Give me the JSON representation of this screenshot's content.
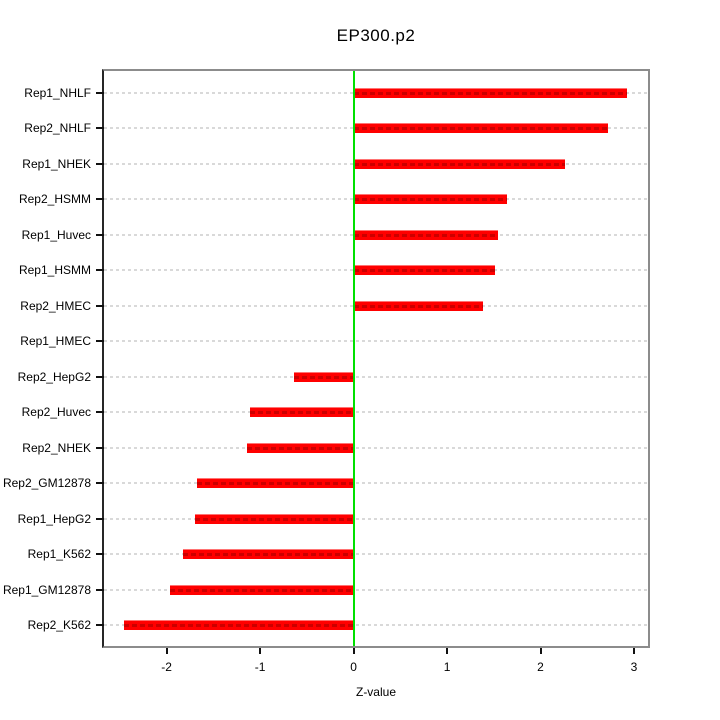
{
  "chart_data": {
    "type": "bar",
    "orientation": "horizontal",
    "title": "EP300.p2",
    "xlabel": "Z-value",
    "ylabel": "",
    "categories": [
      "Rep1_NHLF",
      "Rep2_NHLF",
      "Rep1_NHEK",
      "Rep2_HSMM",
      "Rep1_Huvec",
      "Rep1_HSMM",
      "Rep2_HMEC",
      "Rep1_HMEC",
      "Rep2_HepG2",
      "Rep2_Huvec",
      "Rep2_NHEK",
      "Rep2_GM12878",
      "Rep1_HepG2",
      "Rep1_K562",
      "Rep1_GM12878",
      "Rep2_K562"
    ],
    "values": [
      2.93,
      2.72,
      2.26,
      1.64,
      1.55,
      1.51,
      1.39,
      0.0,
      -0.64,
      -1.11,
      -1.14,
      -1.67,
      -1.7,
      -1.83,
      -1.96,
      -2.46
    ],
    "xlim": [
      -2.67,
      3.15
    ],
    "xticks": [
      -2,
      -1,
      0,
      1,
      2,
      3
    ],
    "zero_line_at": 0,
    "grid": "dotted-horizontal-per-category",
    "legend": null,
    "colors": {
      "bar": "#FF0000",
      "bar_dash_overlay": "#D40000",
      "zero_line": "#00E000",
      "grid": "#D9D9D9",
      "frame": "#8C8C8C",
      "axis": "#000000",
      "text": "#000000",
      "background": "#FFFFFF"
    }
  }
}
